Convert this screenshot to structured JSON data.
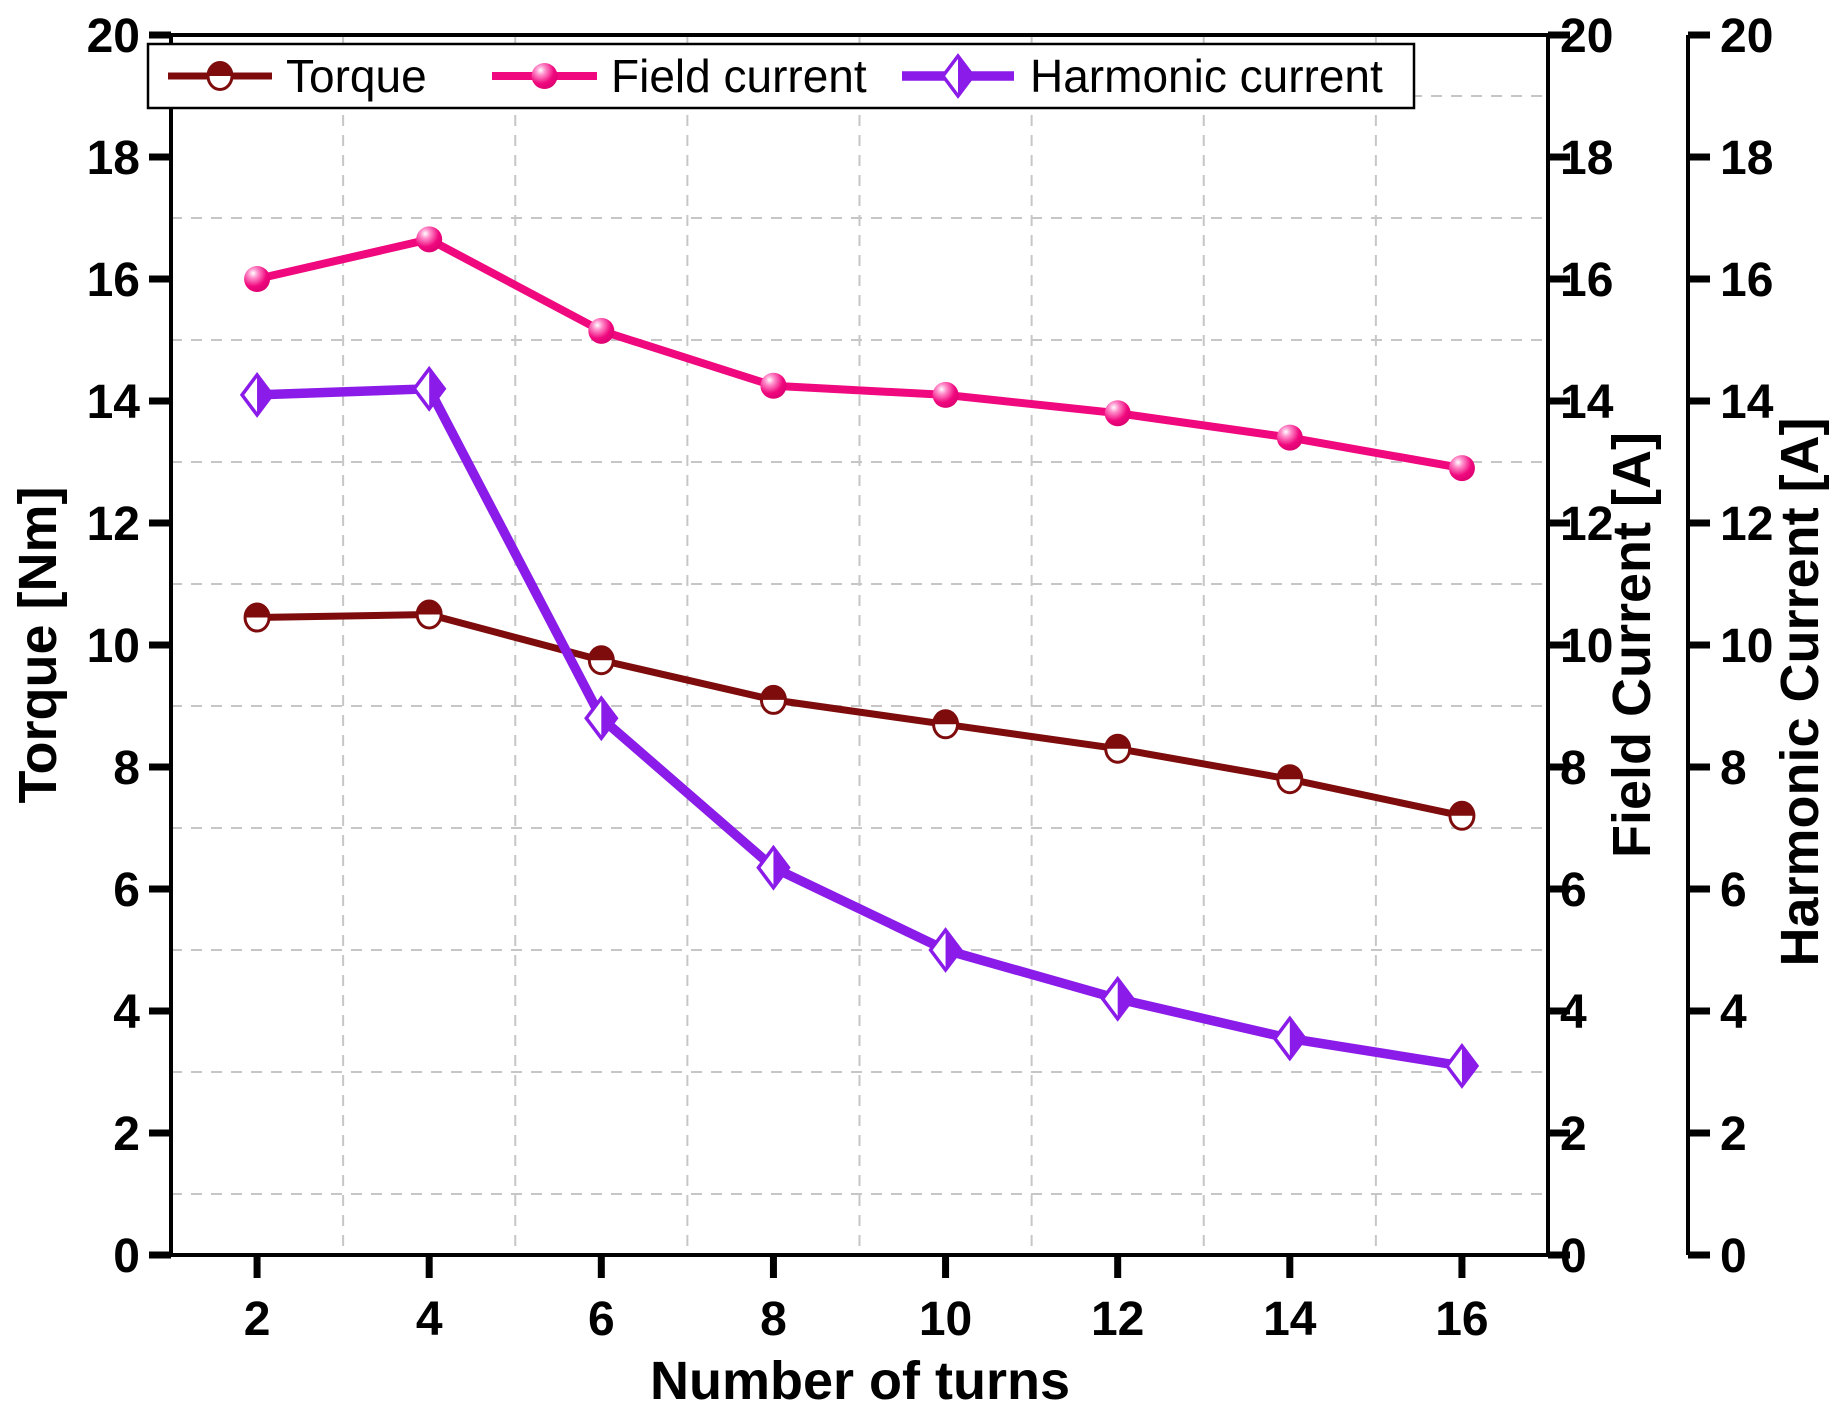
{
  "chart_data": {
    "type": "line",
    "x": [
      2,
      4,
      6,
      8,
      10,
      12,
      14,
      16
    ],
    "series": [
      {
        "name": "Torque",
        "axis": "left",
        "color": "#7E0C0C",
        "marker": "half-circle",
        "values": [
          10.45,
          10.5,
          9.75,
          9.1,
          8.7,
          8.3,
          7.8,
          7.2
        ]
      },
      {
        "name": "Field current",
        "axis": "right1",
        "color": "#F0087E",
        "marker": "sphere",
        "values": [
          16.0,
          16.65,
          15.15,
          14.25,
          14.1,
          13.8,
          13.4,
          12.9
        ]
      },
      {
        "name": "Harmonic current",
        "axis": "right2",
        "color": "#8A1BE8",
        "marker": "half-diamond",
        "values": [
          14.1,
          14.2,
          8.8,
          6.35,
          5.0,
          4.2,
          3.55,
          3.1
        ]
      }
    ],
    "title": "",
    "xlabel": "Number of turns",
    "ylabel_left": "Torque [Nm]",
    "ylabel_right1": "Field Current [A]",
    "ylabel_right2": "Harmonic Current [A]",
    "xlim": [
      1,
      17
    ],
    "ylim": [
      0,
      20
    ],
    "x_ticks": [
      2,
      4,
      6,
      8,
      10,
      12,
      14,
      16
    ],
    "y_ticks": [
      0,
      2,
      4,
      6,
      8,
      10,
      12,
      14,
      16,
      18,
      20
    ],
    "grid": "dashed gridlines at odd x and odd y values",
    "legend_position": "top"
  },
  "legend": {
    "items": [
      {
        "label": "Torque",
        "color": "#7E0C0C",
        "marker": "half-circle"
      },
      {
        "label": "Field current",
        "color": "#F0087E",
        "marker": "sphere"
      },
      {
        "label": "Harmonic current",
        "color": "#8A1BE8",
        "marker": "half-diamond"
      }
    ]
  },
  "colors": {
    "torque": "#7E0C0C",
    "field_current": "#F0087E",
    "harmonic_current": "#8A1BE8",
    "gridline": "#c6c6c6",
    "axis": "#000000",
    "background": "#ffffff"
  }
}
